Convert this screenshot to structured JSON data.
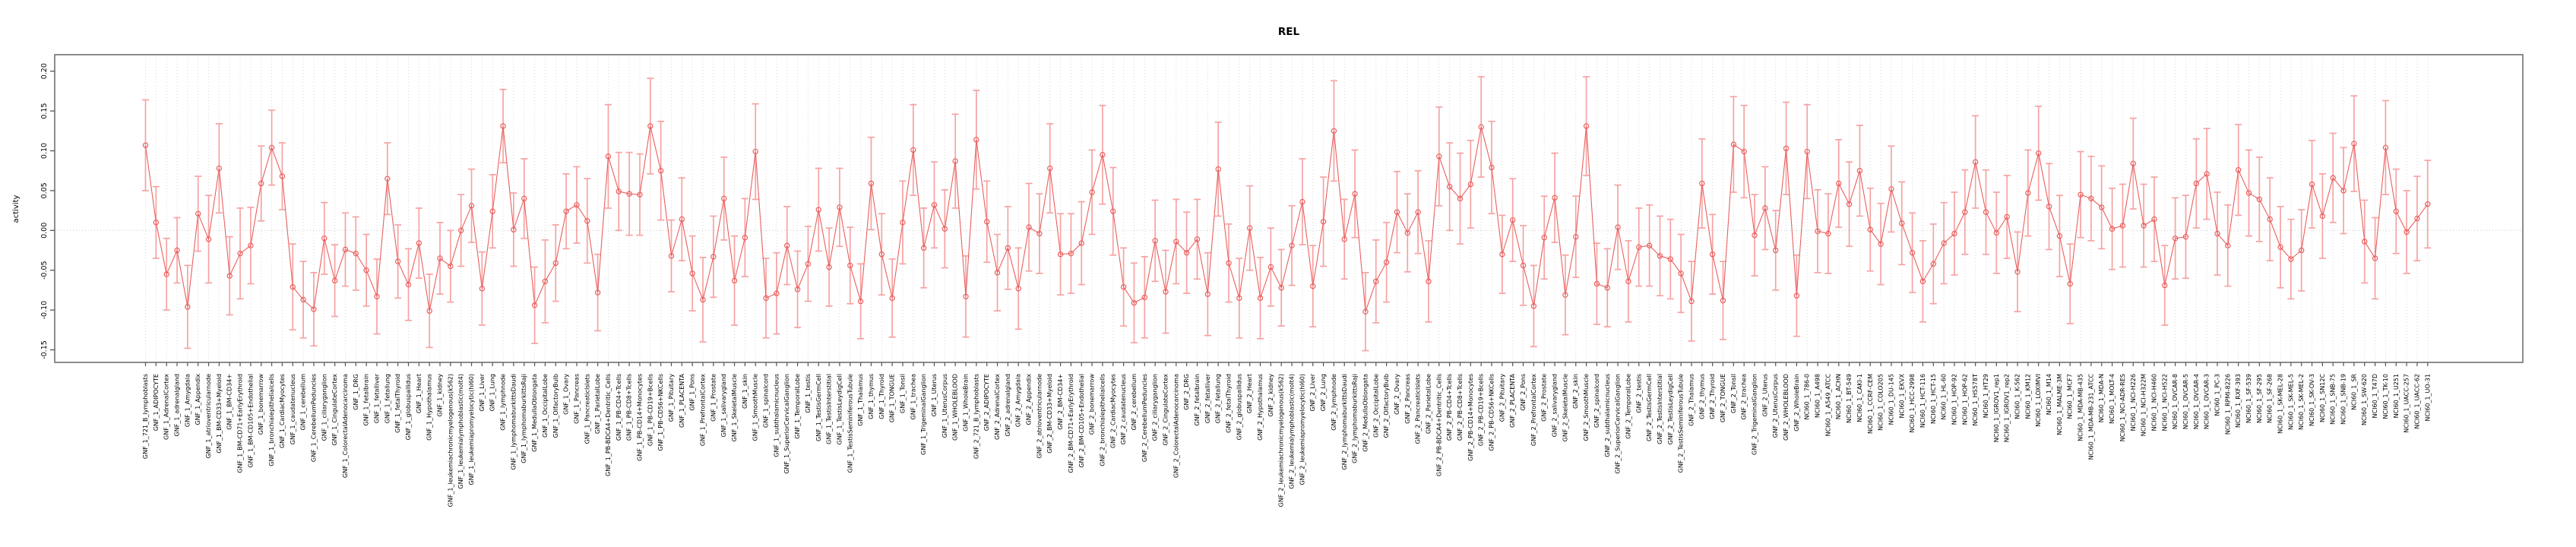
{
  "title": "REL",
  "ylabel": "activity",
  "chart_data": {
    "type": "line",
    "title": "REL",
    "xlabel": "",
    "ylabel": "activity",
    "ylim": [
      -0.17,
      0.215
    ],
    "yticks": [
      "-0.15",
      "-0.10",
      "-0.05",
      "0.00",
      "0.05",
      "0.10",
      "0.15",
      "0.20"
    ],
    "grid": "vertical dotted gridline at every category; horizontal dotted line at zero",
    "legend_position": "none",
    "marker": "open-circle",
    "line_color": "#e9605f",
    "errorbar_color": "#f6a3a2",
    "box_color": "#808080",
    "gridline_color": "#d9d9d9",
    "categories": [
      "GNF_1_721_B_lymphoblasts",
      "GNF_1_ADIPOCYTE",
      "GNF_1_AdrenalCortex",
      "GNF_1_adrenalgland",
      "GNF_1_Amygdala",
      "GNF_1_Appendix",
      "GNF_1_atrioventricularnode",
      "GNF_1_BM-CD33+Myeloid",
      "GNF_1_BM-CD34+",
      "GNF_1_BM-CD71+EarlyErythroid",
      "GNF_1_BM-CD105+Endothelial",
      "GNF_1_bonemarrow",
      "GNF_1_bronchialepithelialcells",
      "GNF_1_CardiacMyocytes",
      "GNF_1_caudatenucleus",
      "GNF_1_cerebellum",
      "GNF_1_CerebellumPeduncles",
      "GNF_1_ciliaryganglion",
      "GNF_1_CingulateCortex",
      "GNF_1_ColorectalAdenocarcinoma",
      "GNF_1_DRG",
      "GNF_1_fetalbrain",
      "GNF_1_fetalliver",
      "GNF_1_fetallung",
      "GNF_1_fetalThyroid",
      "GNF_1_globuspallidus",
      "GNF_1_Heart",
      "GNF_1_Hypothalamus",
      "GNF_1_kidney",
      "GNF_1_leukemiachronicmyelogenous(k562)",
      "GNF_1_leukemialymphoblastic(molt4)",
      "GNF_1_leukemiapromyelocytic(hl60)",
      "GNF_1_Liver",
      "GNF_1_Lung",
      "GNF_1_lymphnode",
      "GNF_1_lymphomaburkittsDaudi",
      "GNF_1_lymphomaburkittsRaji",
      "GNF_1_MedullaOblongata",
      "GNF_1_OccipitalLobe",
      "GNF_1_OlfactoryBulb",
      "GNF_1_Ovary",
      "GNF_1_Pancreas",
      "GNF_1_PancreaticIslets",
      "GNF_1_ParietalLobe",
      "GNF_1_PB-BDCA4+Dentritic_Cells",
      "GNF_1_PB-CD4+Tcells",
      "GNF_1_PB-CD8+Tcells",
      "GNF_1_PB-CD14+Monocytes",
      "GNF_1_PB-CD19+Bcells",
      "GNF_1_PB-CD56+NKCells",
      "GNF_1_Pituitary",
      "GNF_1_PLACENTA",
      "GNF_1_Pons",
      "GNF_1_PrefrontalCortex",
      "GNF_1_Prostate",
      "GNF_1_salivarygland",
      "GNF_1_SkeletalMuscle",
      "GNF_1_skin",
      "GNF_1_SmoothMuscle",
      "GNF_1_spinalcord",
      "GNF_1_subthalamicnucleus",
      "GNF_1_SuperiorCervicalGanglion",
      "GNF_1_TemporalLobe",
      "GNF_1_testis",
      "GNF_1_TestisGermCell",
      "GNF_1_TestisInterstitial",
      "GNF_1_TestisLeydigCell",
      "GNF_1_TestisSeminiferousTubule",
      "GNF_1_Thalamus",
      "GNF_1_thymus",
      "GNF_1_Thyroid",
      "GNF_1_TONGUE",
      "GNF_1_Tonsil",
      "GNF_1_trachea",
      "GNF_1_TrigeminalGanglion",
      "GNF_1_Uterus",
      "GNF_1_UterusCorpus",
      "GNF_1_WHOLEBLOOD",
      "GNF_1_WholeBrain",
      "GNF_2_721_B_lymphoblasts",
      "GNF_2_ADIPOCYTE",
      "GNF_2_AdrenalCortex",
      "GNF_2_adrenalgland",
      "GNF_2_Amygdala",
      "GNF_2_Appendix",
      "GNF_2_atrioventricularnode",
      "GNF_2_BM-CD33+Myeloid",
      "GNF_2_BM-CD34+",
      "GNF_2_BM-CD71+EarlyErythroid",
      "GNF_2_BM-CD105+Endothelial",
      "GNF_2_bonemarrow",
      "GNF_2_bronchialepithelialcells",
      "GNF_2_CardiacMyocytes",
      "GNF_2_caudatenucleus",
      "GNF_2_cerebellum",
      "GNF_2_CerebellumPeduncles",
      "GNF_2_ciliaryganglion",
      "GNF_2_CingulateCortex",
      "GNF_2_ColorectalAdenocarcinoma",
      "GNF_2_DRG",
      "GNF_2_fetalbrain",
      "GNF_2_fetalliver",
      "GNF_2_fetallung",
      "GNF_2_fetalThyroid",
      "GNF_2_globuspallidus",
      "GNF_2_Heart",
      "GNF_2_Hypothalamus",
      "GNF_2_kidney",
      "GNF_2_leukemiachronicmyelogenous(k562)",
      "GNF_2_leukemialymphoblastic(molt4)",
      "GNF_2_leukemiapromyelocytic(hl60)",
      "GNF_2_Liver",
      "GNF_2_Lung",
      "GNF_2_lymphnode",
      "GNF_2_lymphomaburkittsDaudi",
      "GNF_2_lymphomaburkittsRaji",
      "GNF_2_MedullaOblongata",
      "GNF_2_OccipitalLobe",
      "GNF_2_OlfactoryBulb",
      "GNF_2_Ovary",
      "GNF_2_Pancreas",
      "GNF_2_PancreaticIslets",
      "GNF_2_ParietalLobe",
      "GNF_2_PB-BDCA4+Dentritic_Cells",
      "GNF_2_PB-CD4+Tcells",
      "GNF_2_PB-CD8+Tcells",
      "GNF_2_PB-CD14+Monocytes",
      "GNF_2_PB-CD19+Bcells",
      "GNF_2_PB-CD56+NKCells",
      "GNF_2_Pituitary",
      "GNF_2_PLACENTA",
      "GNF_2_Pons",
      "GNF_2_PrefrontalCortex",
      "GNF_2_Prostate",
      "GNF_2_salivarygland",
      "GNF_2_SkeletalMuscle",
      "GNF_2_skin",
      "GNF_2_SmoothMuscle",
      "GNF_2_spinalcord",
      "GNF_2_subthalamicnucleus",
      "GNF_2_SuperiorCervicalGanglion",
      "GNF_2_TemporalLobe",
      "GNF_2_testis",
      "GNF_2_TestisGermCell",
      "GNF_2_TestisInterstitial",
      "GNF_2_TestisLeydigCell",
      "GNF_2_TestisSeminiferousTubule",
      "GNF_2_Thalamus",
      "GNF_2_thymus",
      "GNF_2_Thyroid",
      "GNF_2_TONGUE",
      "GNF_2_Tonsil",
      "GNF_2_trachea",
      "GNF_2_TrigeminalGanglion",
      "GNF_2_Uterus",
      "GNF_2_UterusCorpus",
      "GNF_2_WHOLEBLOOD",
      "GNF_2_WholeBrain",
      "NCI60_1_786-0",
      "NCI60_1_A498",
      "NCI60_1_A549_ATCC",
      "NCI60_1_ACHN",
      "NCI60_1_BT-549",
      "NCI60_1_CAKI-1",
      "NCI60_1_CCRF-CEM",
      "NCI60_1_COLO205",
      "NCI60_1_DU-145",
      "NCI60_1_EKVX",
      "NCI60_1_HCC-2998",
      "NCI60_1_HCT-116",
      "NCI60_1_HCT-15",
      "NCI60_1_HL-60",
      "NCI60_1_HOP-92",
      "NCI60_1_HOP-62",
      "NCI60_1_HS578T",
      "NCI60_1_HT29",
      "NCI60_1_IGROV1_rep1",
      "NCI60_1_IGROV1_rep2",
      "NCI60_1_K-562",
      "NCI60_1_KM12",
      "NCI60_1_LOXIMVI",
      "NCI60_1_M14",
      "NCI60_1_MALME-3M",
      "NCI60_1_MCF7",
      "NCI60_1_MDA-MB-435",
      "NCI60_1_MDA-MB-231_ATCC",
      "NCI60_1_MDA-N",
      "NCI60_1_MOLT-4",
      "NCI60_1_NCI-ADR-RES",
      "NCI60_1_NCI-H226",
      "NCI60_1_NCI-H322M",
      "NCI60_1_NCI-H460",
      "NCI60_1_NCI-H522",
      "NCI60_1_OVCAR-8",
      "NCI60_1_OVCAR-5",
      "NCI60_1_OVCAR-4",
      "NCI60_1_OVCAR-3",
      "NCI60_1_PC-3",
      "NCI60_1_RPMI-8226",
      "NCI60_1_RXF-393",
      "NCI60_1_SF-539",
      "NCI60_1_SF-295",
      "NCI60_1_SF-268",
      "NCI60_1_SK-MEL-28",
      "NCI60_1_SK-MEL-5",
      "NCI60_1_SK-MEL-2",
      "NCI60_1_SK-OV-3",
      "NCI60_1_SN12C",
      "NCI60_1_SNB-75",
      "NCI60_1_SNB-19",
      "NCI60_1_SR",
      "NCI60_1_SW-620",
      "NCI60_1_T47D",
      "NCI60_1_TK-10",
      "NCI60_1_U251",
      "NCI60_1_UACC-257",
      "NCI60_1_UACC-62",
      "NCI60_1_UO-31"
    ],
    "values": [
      0.107,
      0.01,
      -0.055,
      -0.025,
      -0.096,
      0.021,
      -0.011,
      0.078,
      -0.057,
      -0.029,
      -0.019,
      0.059,
      0.104,
      0.068,
      -0.071,
      -0.087,
      -0.099,
      -0.01,
      -0.063,
      -0.024,
      -0.029,
      -0.05,
      -0.083,
      0.065,
      -0.039,
      -0.068,
      -0.016,
      -0.101,
      -0.035,
      -0.045,
      0.0,
      0.031,
      -0.073,
      0.024,
      0.131,
      0.001,
      0.04,
      -0.094,
      -0.064,
      -0.041,
      0.024,
      0.032,
      0.012,
      -0.078,
      0.093,
      0.049,
      0.046,
      0.045,
      0.131,
      0.075,
      -0.032,
      0.014,
      -0.054,
      -0.087,
      -0.033,
      0.04,
      -0.063,
      -0.009,
      0.099,
      -0.085,
      -0.079,
      -0.019,
      -0.074,
      -0.042,
      0.026,
      -0.046,
      0.029,
      -0.044,
      -0.089,
      0.059,
      -0.03,
      -0.085,
      0.01,
      0.101,
      -0.022,
      0.032,
      0.002,
      0.087,
      -0.083,
      0.114,
      0.011,
      -0.053,
      -0.022,
      -0.073,
      0.004,
      -0.004,
      0.078,
      -0.03,
      -0.029,
      -0.016,
      0.048,
      0.095,
      0.024,
      -0.071,
      -0.091,
      -0.084,
      -0.013,
      -0.077,
      -0.014,
      -0.028,
      -0.011,
      -0.08,
      0.077,
      -0.041,
      -0.085,
      0.003,
      -0.085,
      -0.046,
      -0.072,
      -0.019,
      0.036,
      -0.07,
      0.011,
      0.125,
      -0.011,
      0.046,
      -0.102,
      -0.064,
      -0.04,
      0.023,
      -0.003,
      0.023,
      -0.064,
      0.093,
      0.055,
      0.04,
      0.058,
      0.13,
      0.079,
      -0.03,
      0.013,
      -0.044,
      -0.095,
      -0.009,
      0.041,
      -0.081,
      -0.008,
      0.131,
      -0.067,
      -0.072,
      0.004,
      -0.064,
      -0.021,
      -0.019,
      -0.032,
      -0.036,
      -0.054,
      -0.089,
      0.059,
      -0.03,
      -0.088,
      0.108,
      0.099,
      -0.006,
      0.028,
      -0.025,
      0.103,
      -0.082,
      0.099,
      -0.001,
      -0.004,
      0.059,
      0.033,
      0.075,
      0.001,
      -0.017,
      0.052,
      0.009,
      -0.028,
      -0.064,
      -0.042,
      -0.016,
      -0.004,
      0.023,
      0.086,
      0.023,
      -0.003,
      0.017,
      -0.052,
      0.047,
      0.097,
      0.03,
      -0.007,
      -0.067,
      0.045,
      0.04,
      0.029,
      0.002,
      0.006,
      0.084,
      0.006,
      0.014,
      -0.069,
      -0.01,
      -0.008,
      0.059,
      0.071,
      -0.004,
      -0.019,
      0.076,
      0.047,
      0.039,
      0.014,
      -0.021,
      -0.036,
      -0.025,
      0.058,
      0.018,
      0.066,
      0.05,
      0.109,
      -0.014,
      -0.035,
      0.104,
      0.024,
      -0.002,
      0.015,
      0.033
    ],
    "errors": [
      0.057,
      0.045,
      0.045,
      0.041,
      0.052,
      0.047,
      0.055,
      0.056,
      0.049,
      0.057,
      0.048,
      0.047,
      0.047,
      0.042,
      0.054,
      0.048,
      0.046,
      0.045,
      0.045,
      0.046,
      0.046,
      0.045,
      0.047,
      0.045,
      0.046,
      0.045,
      0.044,
      0.046,
      0.045,
      0.045,
      0.045,
      0.046,
      0.046,
      0.046,
      0.046,
      0.046,
      0.05,
      0.048,
      0.052,
      0.048,
      0.047,
      0.048,
      0.053,
      0.048,
      0.065,
      0.049,
      0.052,
      0.051,
      0.06,
      0.062,
      0.045,
      0.052,
      0.047,
      0.053,
      0.051,
      0.052,
      0.056,
      0.049,
      0.06,
      0.05,
      0.051,
      0.049,
      0.048,
      0.047,
      0.052,
      0.049,
      0.049,
      0.048,
      0.047,
      0.058,
      0.051,
      0.049,
      0.052,
      0.057,
      0.05,
      0.054,
      0.049,
      0.059,
      0.051,
      0.062,
      0.051,
      0.048,
      0.052,
      0.051,
      0.055,
      0.05,
      0.056,
      0.051,
      0.05,
      0.052,
      0.053,
      0.062,
      0.055,
      0.049,
      0.05,
      0.051,
      0.051,
      0.052,
      0.053,
      0.051,
      0.05,
      0.052,
      0.059,
      0.049,
      0.05,
      0.053,
      0.051,
      0.049,
      0.048,
      0.05,
      0.054,
      0.051,
      0.056,
      0.063,
      0.05,
      0.055,
      0.049,
      0.052,
      0.05,
      0.051,
      0.049,
      0.052,
      0.051,
      0.062,
      0.055,
      0.057,
      0.055,
      0.063,
      0.058,
      0.049,
      0.052,
      0.05,
      0.051,
      0.052,
      0.056,
      0.05,
      0.051,
      0.062,
      0.051,
      0.049,
      0.053,
      0.051,
      0.049,
      0.051,
      0.05,
      0.05,
      0.049,
      0.05,
      0.056,
      0.05,
      0.049,
      0.06,
      0.058,
      0.051,
      0.052,
      0.05,
      0.058,
      0.051,
      0.059,
      0.052,
      0.05,
      0.055,
      0.053,
      0.057,
      0.052,
      0.051,
      0.054,
      0.052,
      0.05,
      0.051,
      0.05,
      0.051,
      0.052,
      0.053,
      0.058,
      0.053,
      0.051,
      0.052,
      0.05,
      0.054,
      0.059,
      0.054,
      0.051,
      0.05,
      0.054,
      0.053,
      0.052,
      0.051,
      0.052,
      0.057,
      0.052,
      0.053,
      0.05,
      0.051,
      0.052,
      0.056,
      0.057,
      0.052,
      0.051,
      0.057,
      0.054,
      0.053,
      0.052,
      0.051,
      0.05,
      0.051,
      0.055,
      0.053,
      0.056,
      0.054,
      0.06,
      0.052,
      0.051,
      0.059,
      0.053,
      0.052,
      0.053,
      0.055
    ]
  }
}
